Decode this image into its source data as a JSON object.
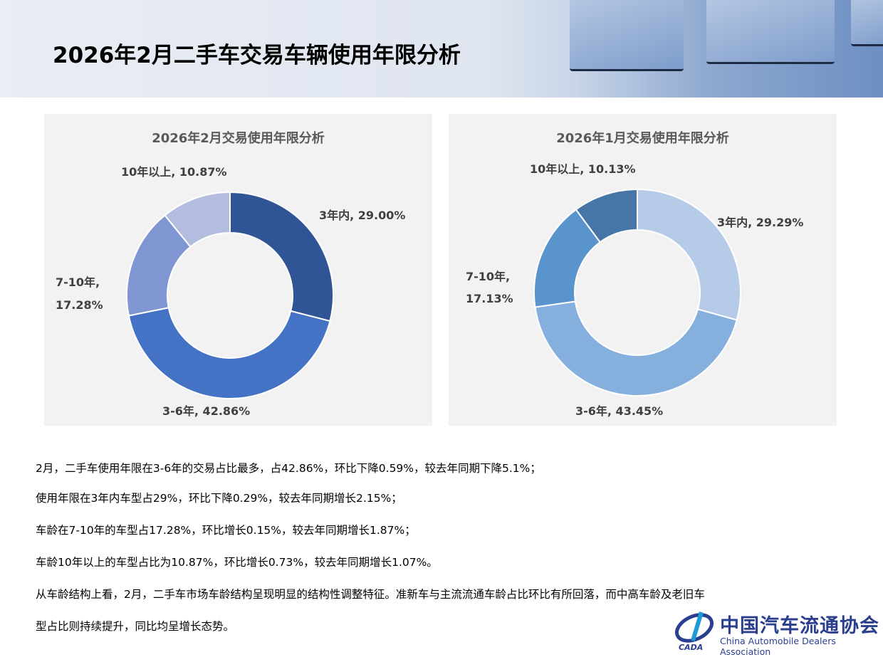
{
  "page_title": "2026年2月二手车交易车辆使用年限分析",
  "chart_data": [
    {
      "type": "pie",
      "subtype": "donut",
      "title": "2026年2月交易使用年限分析",
      "categories": [
        "3年内",
        "3-6年",
        "7-10年",
        "10年以上"
      ],
      "values": [
        29.0,
        42.86,
        17.28,
        10.87
      ],
      "labels": [
        "3年内, 29.00%",
        "3-6年, 42.86%",
        "7-10年,",
        "17.28%",
        "10年以上, 10.87%"
      ],
      "colors": [
        "#2f5597",
        "#4472c4",
        "#7f96d2",
        "#b4bde0"
      ]
    },
    {
      "type": "pie",
      "subtype": "donut",
      "title": "2026年1月交易使用年限分析",
      "categories": [
        "3年内",
        "3-6年",
        "7-10年",
        "10年以上"
      ],
      "values": [
        29.29,
        43.45,
        17.13,
        10.13
      ],
      "labels": [
        "3年内, 29.29%",
        "3-6年, 43.45%",
        "7-10年,",
        "17.13%",
        "10年以上, 10.13%"
      ],
      "colors": [
        "#b6cbe8",
        "#85afdd",
        "#5a94cc",
        "#4676a8"
      ]
    }
  ],
  "paragraphs": [
    "2月，二手车使用年限在3-6年的交易占比最多，占42.86%，环比下降0.59%，较去年同期下降5.1%；",
    "使用年限在3年内车型占29%，环比下降0.29%，较去年同期增长2.15%；",
    "车龄在7-10年的车型占17.28%，环比增长0.15%，较去年同期增长1.87%；",
    "车龄10年以上的车型占比为10.87%，环比增长0.73%，较去年同期增长1.07%。",
    "从车龄结构上看，2月，二手车市场车龄结构呈现明显的结构性调整特征。准新车与主流流通车龄占比环比有所回落，而中高车龄及老旧车",
    "型占比则持续提升，同比均呈增长态势。"
  ],
  "logo": {
    "cn": "中国汽车流通协会",
    "en": "China Automobile Dealers Association",
    "mark": "CADA"
  }
}
